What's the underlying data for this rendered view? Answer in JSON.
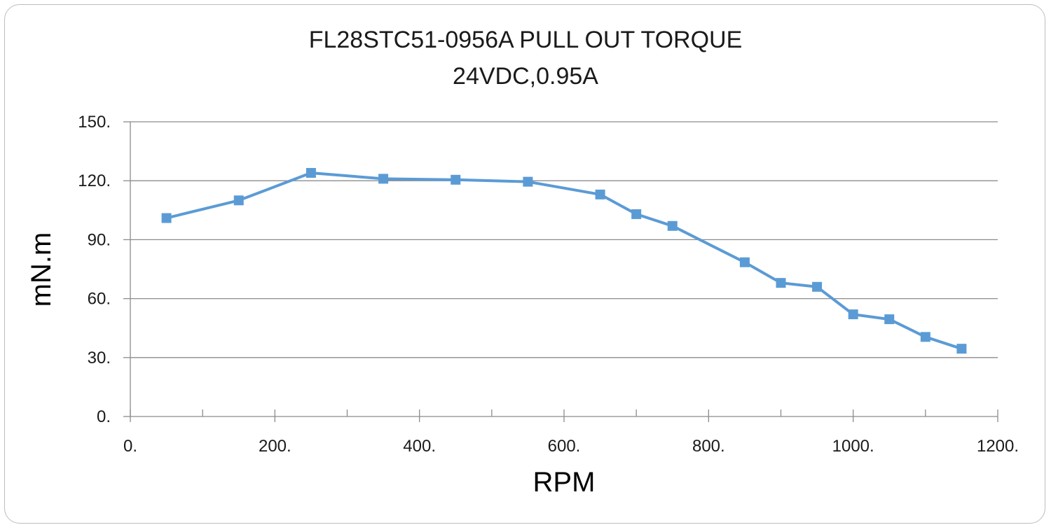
{
  "chart_data": {
    "type": "line",
    "title": "FL28STC51-0956A PULL OUT TORQUE",
    "subtitle": "24VDC,0.95A",
    "xlabel": "RPM",
    "ylabel": "mN.m",
    "xlim": [
      0,
      1200
    ],
    "ylim": [
      0,
      150
    ],
    "x_major_ticks": [
      0,
      200,
      400,
      600,
      800,
      1000,
      1200
    ],
    "x_minor_ticks": [
      100,
      300,
      500,
      700,
      900,
      1100
    ],
    "x_tick_labels": [
      "0.",
      "200.",
      "400.",
      "600.",
      "800.",
      "1000.",
      "1200."
    ],
    "y_ticks": [
      0,
      30,
      60,
      90,
      120,
      150
    ],
    "y_tick_labels": [
      "0.",
      "30.",
      "60.",
      "90.",
      "120.",
      "150."
    ],
    "grid": "horizontal",
    "legend": "none",
    "series": [
      {
        "color": "#5b9bd5",
        "marker": "square",
        "x": [
          50,
          150,
          250,
          350,
          450,
          550,
          650,
          700,
          750,
          850,
          900,
          950,
          1000,
          1050,
          1100,
          1150
        ],
        "y": [
          101,
          110,
          124,
          121,
          120.5,
          119.5,
          113,
          103,
          97,
          78.5,
          68,
          66,
          52,
          49.5,
          40.5,
          34.5
        ]
      }
    ]
  }
}
